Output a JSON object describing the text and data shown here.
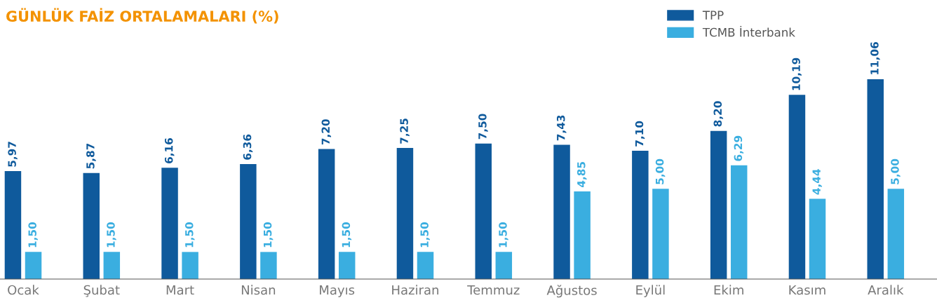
{
  "chart_data": {
    "type": "bar",
    "title": "GÜNLÜK FAİZ ORTALAMALARI (%)",
    "categories": [
      "Ocak",
      "Şubat",
      "Mart",
      "Nisan",
      "Mayıs",
      "Haziran",
      "Temmuz",
      "Ağustos",
      "Eylül",
      "Ekim",
      "Kasım",
      "Aralık"
    ],
    "series": [
      {
        "name": "TPP",
        "color": "#0f5a9c",
        "values": [
          5.97,
          5.87,
          6.16,
          6.36,
          7.2,
          7.25,
          7.5,
          7.43,
          7.1,
          8.2,
          10.19,
          11.06
        ],
        "value_labels": [
          "5,97",
          "5,87",
          "6,16",
          "6,36",
          "7,20",
          "7,25",
          "7,50",
          "7,43",
          "7,10",
          "8,20",
          "10,19",
          "11,06"
        ]
      },
      {
        "name": "TCMB İnterbank",
        "color": "#3aaee0",
        "values": [
          1.5,
          1.5,
          1.5,
          1.5,
          1.5,
          1.5,
          1.5,
          4.85,
          5.0,
          6.29,
          4.44,
          5.0
        ],
        "value_labels": [
          "1,50",
          "1,50",
          "1,50",
          "1,50",
          "1,50",
          "1,50",
          "1,50",
          "4,85",
          "5,00",
          "6,29",
          "4,44",
          "5,00"
        ]
      }
    ],
    "legend": "top right",
    "grid": false
  }
}
